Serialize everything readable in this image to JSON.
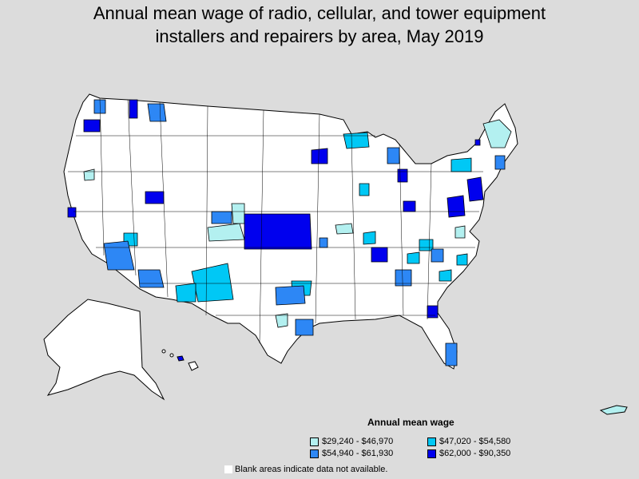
{
  "title_line1": "Annual mean wage of radio, cellular, and tower equipment",
  "title_line2": "installers and repairers by area, May 2019",
  "legend": {
    "title": "Annual mean wage",
    "items": [
      {
        "label": "$29,240 - $46,970",
        "color": "#b3f0f0"
      },
      {
        "label": "$47,020 - $54,580",
        "color": "#00c8f5"
      },
      {
        "label": "$54,940 - $61,930",
        "color": "#2d87f5"
      },
      {
        "label": "$62,000 - $90,350",
        "color": "#0000ee"
      }
    ]
  },
  "blank_note": "Blank areas indicate data not available.",
  "colors": {
    "background": "#dcdcdc",
    "land": "#ffffff",
    "border": "#000000"
  }
}
